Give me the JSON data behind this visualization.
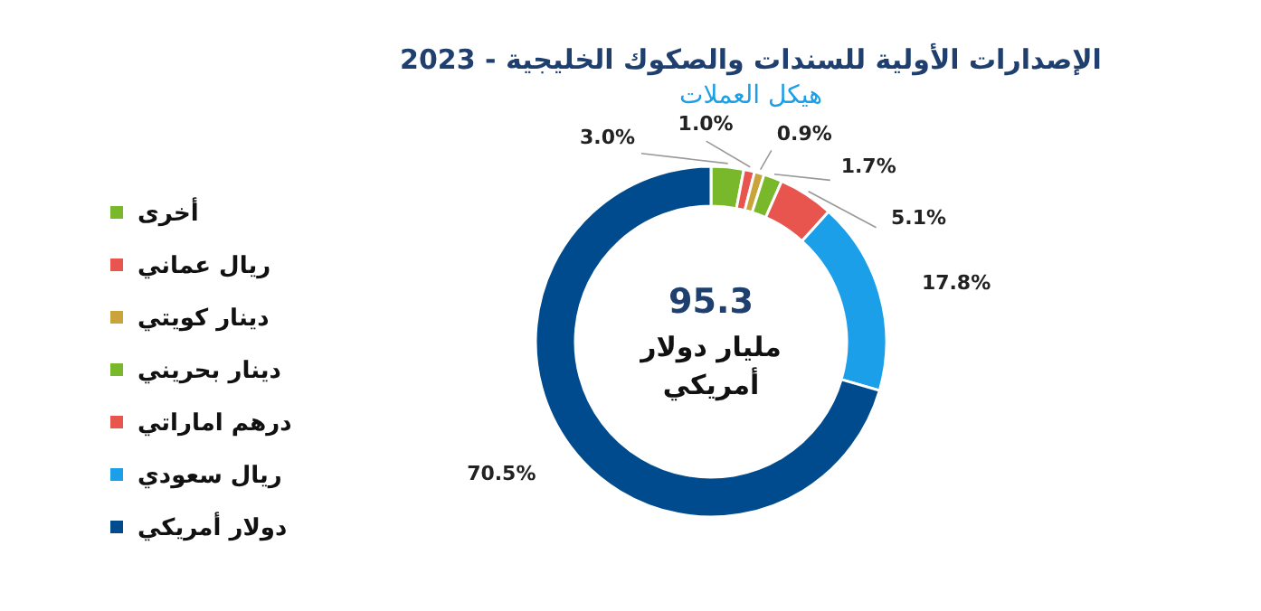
{
  "chart_data": {
    "type": "donut",
    "title": "الإصدارات الأولية للسندات والصكوك الخليجية - 2023",
    "subtitle": "هيكل العملات",
    "categories": [
      "أخرى",
      "ريال عماني",
      "دينار كويتي",
      "دينار بحريني",
      "درهم اماراتي",
      "ريال سعودي",
      "دولار أمريكي"
    ],
    "values": [
      3.0,
      1.0,
      0.9,
      1.7,
      5.1,
      17.8,
      70.5
    ],
    "colors": [
      "#78b82a",
      "#e8554e",
      "#c9a43a",
      "#78b82a",
      "#e8554e",
      "#1a9fe8",
      "#004b8d"
    ],
    "value_labels": [
      "3.0%",
      "1.0%",
      "0.9%",
      "1.7%",
      "5.1%",
      "17.8%",
      "70.5%"
    ],
    "annotations": [
      "95.3",
      "مليار دولار",
      "أمريكي"
    ],
    "legend": "left"
  }
}
